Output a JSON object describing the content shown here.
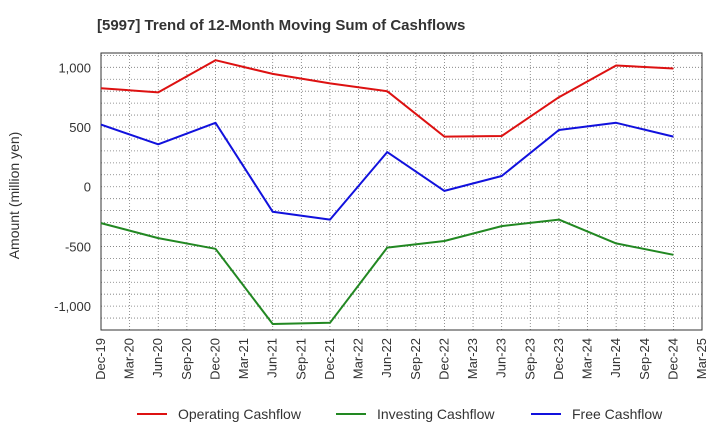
{
  "chart_data": {
    "type": "line",
    "title": "[5997]  Trend of 12-Month Moving Sum of Cashflows",
    "xlabel": "",
    "ylabel": "Amount (million yen)",
    "x_ticks": [
      "Dec-19",
      "Mar-20",
      "Jun-20",
      "Sep-20",
      "Dec-20",
      "Mar-21",
      "Jun-21",
      "Sep-21",
      "Dec-21",
      "Mar-22",
      "Jun-22",
      "Sep-22",
      "Dec-22",
      "Mar-23",
      "Jun-23",
      "Sep-23",
      "Dec-23",
      "Mar-24",
      "Jun-24",
      "Sep-24",
      "Dec-24",
      "Mar-25"
    ],
    "x": [
      "Dec-19",
      "Jun-20",
      "Dec-20",
      "Jun-21",
      "Dec-21",
      "Jun-22",
      "Dec-22",
      "Jun-23",
      "Dec-23",
      "Jun-24",
      "Dec-24"
    ],
    "y_ticks": [
      1000,
      500,
      0,
      -500,
      -1000
    ],
    "y_tick_labels": [
      "1,000",
      "500",
      "0",
      "-500",
      "-1,000"
    ],
    "ylim": [
      -1200,
      1120
    ],
    "grid": true,
    "legend_position": "bottom",
    "series": [
      {
        "name": "Operating Cashflow",
        "color": "#dd1111",
        "values": [
          825,
          790,
          1060,
          945,
          865,
          800,
          420,
          425,
          750,
          1015,
          990
        ]
      },
      {
        "name": "Investing Cashflow",
        "color": "#228822",
        "values": [
          -305,
          -430,
          -520,
          -1150,
          -1140,
          -510,
          -455,
          -330,
          -275,
          -475,
          -570
        ]
      },
      {
        "name": "Free Cashflow",
        "color": "#1111dd",
        "values": [
          520,
          355,
          535,
          -210,
          -275,
          290,
          -35,
          90,
          475,
          535,
          420
        ]
      }
    ]
  }
}
